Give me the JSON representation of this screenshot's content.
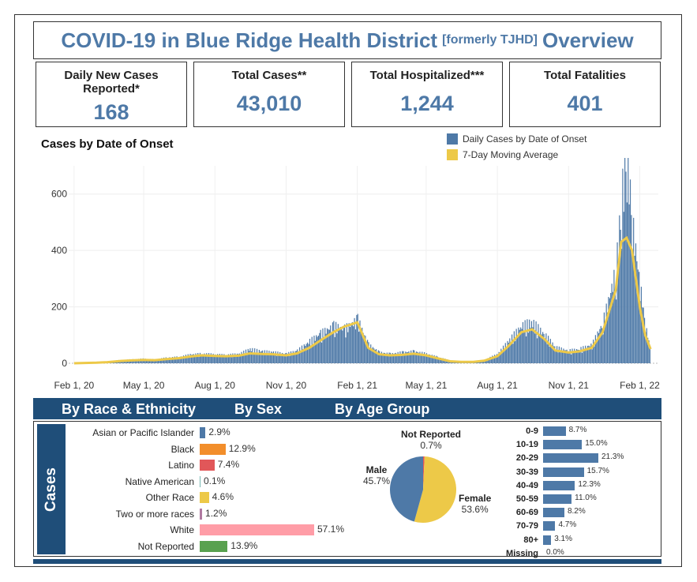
{
  "header": {
    "title_pre": "COVID-19 in Blue Ridge Health District",
    "title_sub": "[formerly TJHD]",
    "title_post": "Overview"
  },
  "kpis": [
    {
      "label": "Daily New Cases Reported*",
      "value": "168"
    },
    {
      "label": "Total Cases**",
      "value": "43,010"
    },
    {
      "label": "Total Hospitalized***",
      "value": "1,244"
    },
    {
      "label": "Total Fatalities",
      "value": "401"
    }
  ],
  "legend": {
    "daily_label": "Daily Cases by Date of Onset",
    "avg_label": "7-Day Moving Average"
  },
  "colors": {
    "brand_blue": "#4e79a7",
    "dark_blue": "#1f4e79",
    "avg_yellow": "#edc948",
    "race_blue": "#4e79a7",
    "race_orange": "#f28e2b",
    "race_red": "#e15759",
    "race_yellow": "#edc948",
    "race_pink": "#ff9da7",
    "race_green": "#59a14f"
  },
  "chart_data": {
    "type": "bar",
    "title": "Cases by Date of Onset",
    "x_ticks": [
      "Feb 1, 20",
      "May 1, 20",
      "Aug 1, 20",
      "Nov 1, 20",
      "Feb 1, 21",
      "May 1, 21",
      "Aug 1, 21",
      "Nov 1, 21",
      "Feb 1, 22"
    ],
    "y_ticks": [
      "0",
      "200",
      "400",
      "600"
    ],
    "ylim": [
      0,
      700
    ],
    "series": [
      {
        "name": "Daily Cases by Date of Onset",
        "type": "bar",
        "x": [
          "2020-02-01",
          "2020-02-15",
          "2020-03-01",
          "2020-03-15",
          "2020-04-01",
          "2020-04-15",
          "2020-05-01",
          "2020-05-15",
          "2020-06-01",
          "2020-06-15",
          "2020-07-01",
          "2020-07-15",
          "2020-08-01",
          "2020-08-15",
          "2020-09-01",
          "2020-09-15",
          "2020-10-01",
          "2020-10-15",
          "2020-11-01",
          "2020-11-15",
          "2020-12-01",
          "2020-12-15",
          "2021-01-01",
          "2021-01-15",
          "2021-02-01",
          "2021-02-15",
          "2021-03-01",
          "2021-03-15",
          "2021-04-01",
          "2021-04-15",
          "2021-05-01",
          "2021-05-15",
          "2021-06-01",
          "2021-06-15",
          "2021-07-01",
          "2021-07-15",
          "2021-08-01",
          "2021-08-15",
          "2021-09-01",
          "2021-09-15",
          "2021-10-01",
          "2021-10-15",
          "2021-11-01",
          "2021-11-15",
          "2021-12-01",
          "2021-12-15",
          "2022-01-01",
          "2022-01-08",
          "2022-01-15",
          "2022-01-22",
          "2022-02-01",
          "2022-02-08",
          "2022-02-15"
        ],
        "values": [
          0,
          1,
          2,
          5,
          10,
          12,
          14,
          12,
          18,
          20,
          28,
          30,
          28,
          26,
          30,
          45,
          38,
          35,
          30,
          40,
          70,
          95,
          120,
          110,
          140,
          60,
          35,
          30,
          35,
          38,
          30,
          20,
          8,
          5,
          6,
          10,
          30,
          70,
          120,
          130,
          90,
          50,
          40,
          45,
          60,
          130,
          300,
          520,
          700,
          450,
          250,
          120,
          40
        ]
      },
      {
        "name": "7-Day Moving Average",
        "type": "line",
        "x": [
          "2020-02-01",
          "2020-02-15",
          "2020-03-01",
          "2020-03-15",
          "2020-04-01",
          "2020-04-15",
          "2020-05-01",
          "2020-05-15",
          "2020-06-01",
          "2020-06-15",
          "2020-07-01",
          "2020-07-15",
          "2020-08-01",
          "2020-08-15",
          "2020-09-01",
          "2020-09-15",
          "2020-10-01",
          "2020-10-15",
          "2020-11-01",
          "2020-11-15",
          "2020-12-01",
          "2020-12-15",
          "2021-01-01",
          "2021-01-15",
          "2021-02-01",
          "2021-02-15",
          "2021-03-01",
          "2021-03-15",
          "2021-04-01",
          "2021-04-15",
          "2021-05-01",
          "2021-05-15",
          "2021-06-01",
          "2021-06-15",
          "2021-07-01",
          "2021-07-15",
          "2021-08-01",
          "2021-08-15",
          "2021-09-01",
          "2021-09-15",
          "2021-10-01",
          "2021-10-15",
          "2021-11-01",
          "2021-11-15",
          "2021-12-01",
          "2021-12-15",
          "2022-01-01",
          "2022-01-08",
          "2022-01-15",
          "2022-01-22",
          "2022-02-01",
          "2022-02-08",
          "2022-02-15"
        ],
        "values": [
          0,
          1,
          2,
          4,
          8,
          10,
          12,
          11,
          15,
          18,
          24,
          28,
          26,
          25,
          27,
          35,
          33,
          32,
          28,
          35,
          55,
          80,
          110,
          130,
          145,
          55,
          32,
          28,
          30,
          34,
          28,
          18,
          7,
          5,
          5,
          9,
          25,
          60,
          110,
          120,
          85,
          45,
          38,
          42,
          55,
          110,
          260,
          430,
          445,
          400,
          200,
          100,
          50
        ]
      }
    ]
  },
  "section_headers": {
    "race": "By Race & Ethnicity",
    "sex": "By Sex",
    "age": "By Age Group"
  },
  "cases_tab": "Cases",
  "race_ethnicity": [
    {
      "label": "Asian or Pacific Islander",
      "pct": 2.9,
      "text": "2.9%",
      "color": "#4e79a7"
    },
    {
      "label": "Black",
      "pct": 12.9,
      "text": "12.9%",
      "color": "#f28e2b"
    },
    {
      "label": "Latino",
      "pct": 7.4,
      "text": "7.4%",
      "color": "#e15759"
    },
    {
      "label": "Native American",
      "pct": 0.1,
      "text": "0.1%",
      "color": "#76b7b2"
    },
    {
      "label": "Other Race",
      "pct": 4.6,
      "text": "4.6%",
      "color": "#edc948"
    },
    {
      "label": "Two or more races",
      "pct": 1.2,
      "text": "1.2%",
      "color": "#b07aa1"
    },
    {
      "label": "White",
      "pct": 57.1,
      "text": "57.1%",
      "color": "#ff9da7"
    },
    {
      "label": "Not Reported",
      "pct": 13.9,
      "text": "13.9%",
      "color": "#59a14f"
    }
  ],
  "sex": [
    {
      "label": "Male",
      "pct": 45.7,
      "text": "45.7%",
      "color": "#4e79a7"
    },
    {
      "label": "Female",
      "pct": 53.6,
      "text": "53.6%",
      "color": "#edc948"
    },
    {
      "label": "Not Reported",
      "pct": 0.7,
      "text": "0.7%",
      "color": "#e15759"
    }
  ],
  "age_groups": [
    {
      "label": "0-9",
      "pct": 8.7,
      "text": "8.7%"
    },
    {
      "label": "10-19",
      "pct": 15.0,
      "text": "15.0%"
    },
    {
      "label": "20-29",
      "pct": 21.3,
      "text": "21.3%"
    },
    {
      "label": "30-39",
      "pct": 15.7,
      "text": "15.7%"
    },
    {
      "label": "40-49",
      "pct": 12.3,
      "text": "12.3%"
    },
    {
      "label": "50-59",
      "pct": 11.0,
      "text": "11.0%"
    },
    {
      "label": "60-69",
      "pct": 8.2,
      "text": "8.2%"
    },
    {
      "label": "70-79",
      "pct": 4.7,
      "text": "4.7%"
    },
    {
      "label": "80+",
      "pct": 3.1,
      "text": "3.1%"
    },
    {
      "label": "Missing",
      "pct": 0.0,
      "text": "0.0%"
    }
  ]
}
